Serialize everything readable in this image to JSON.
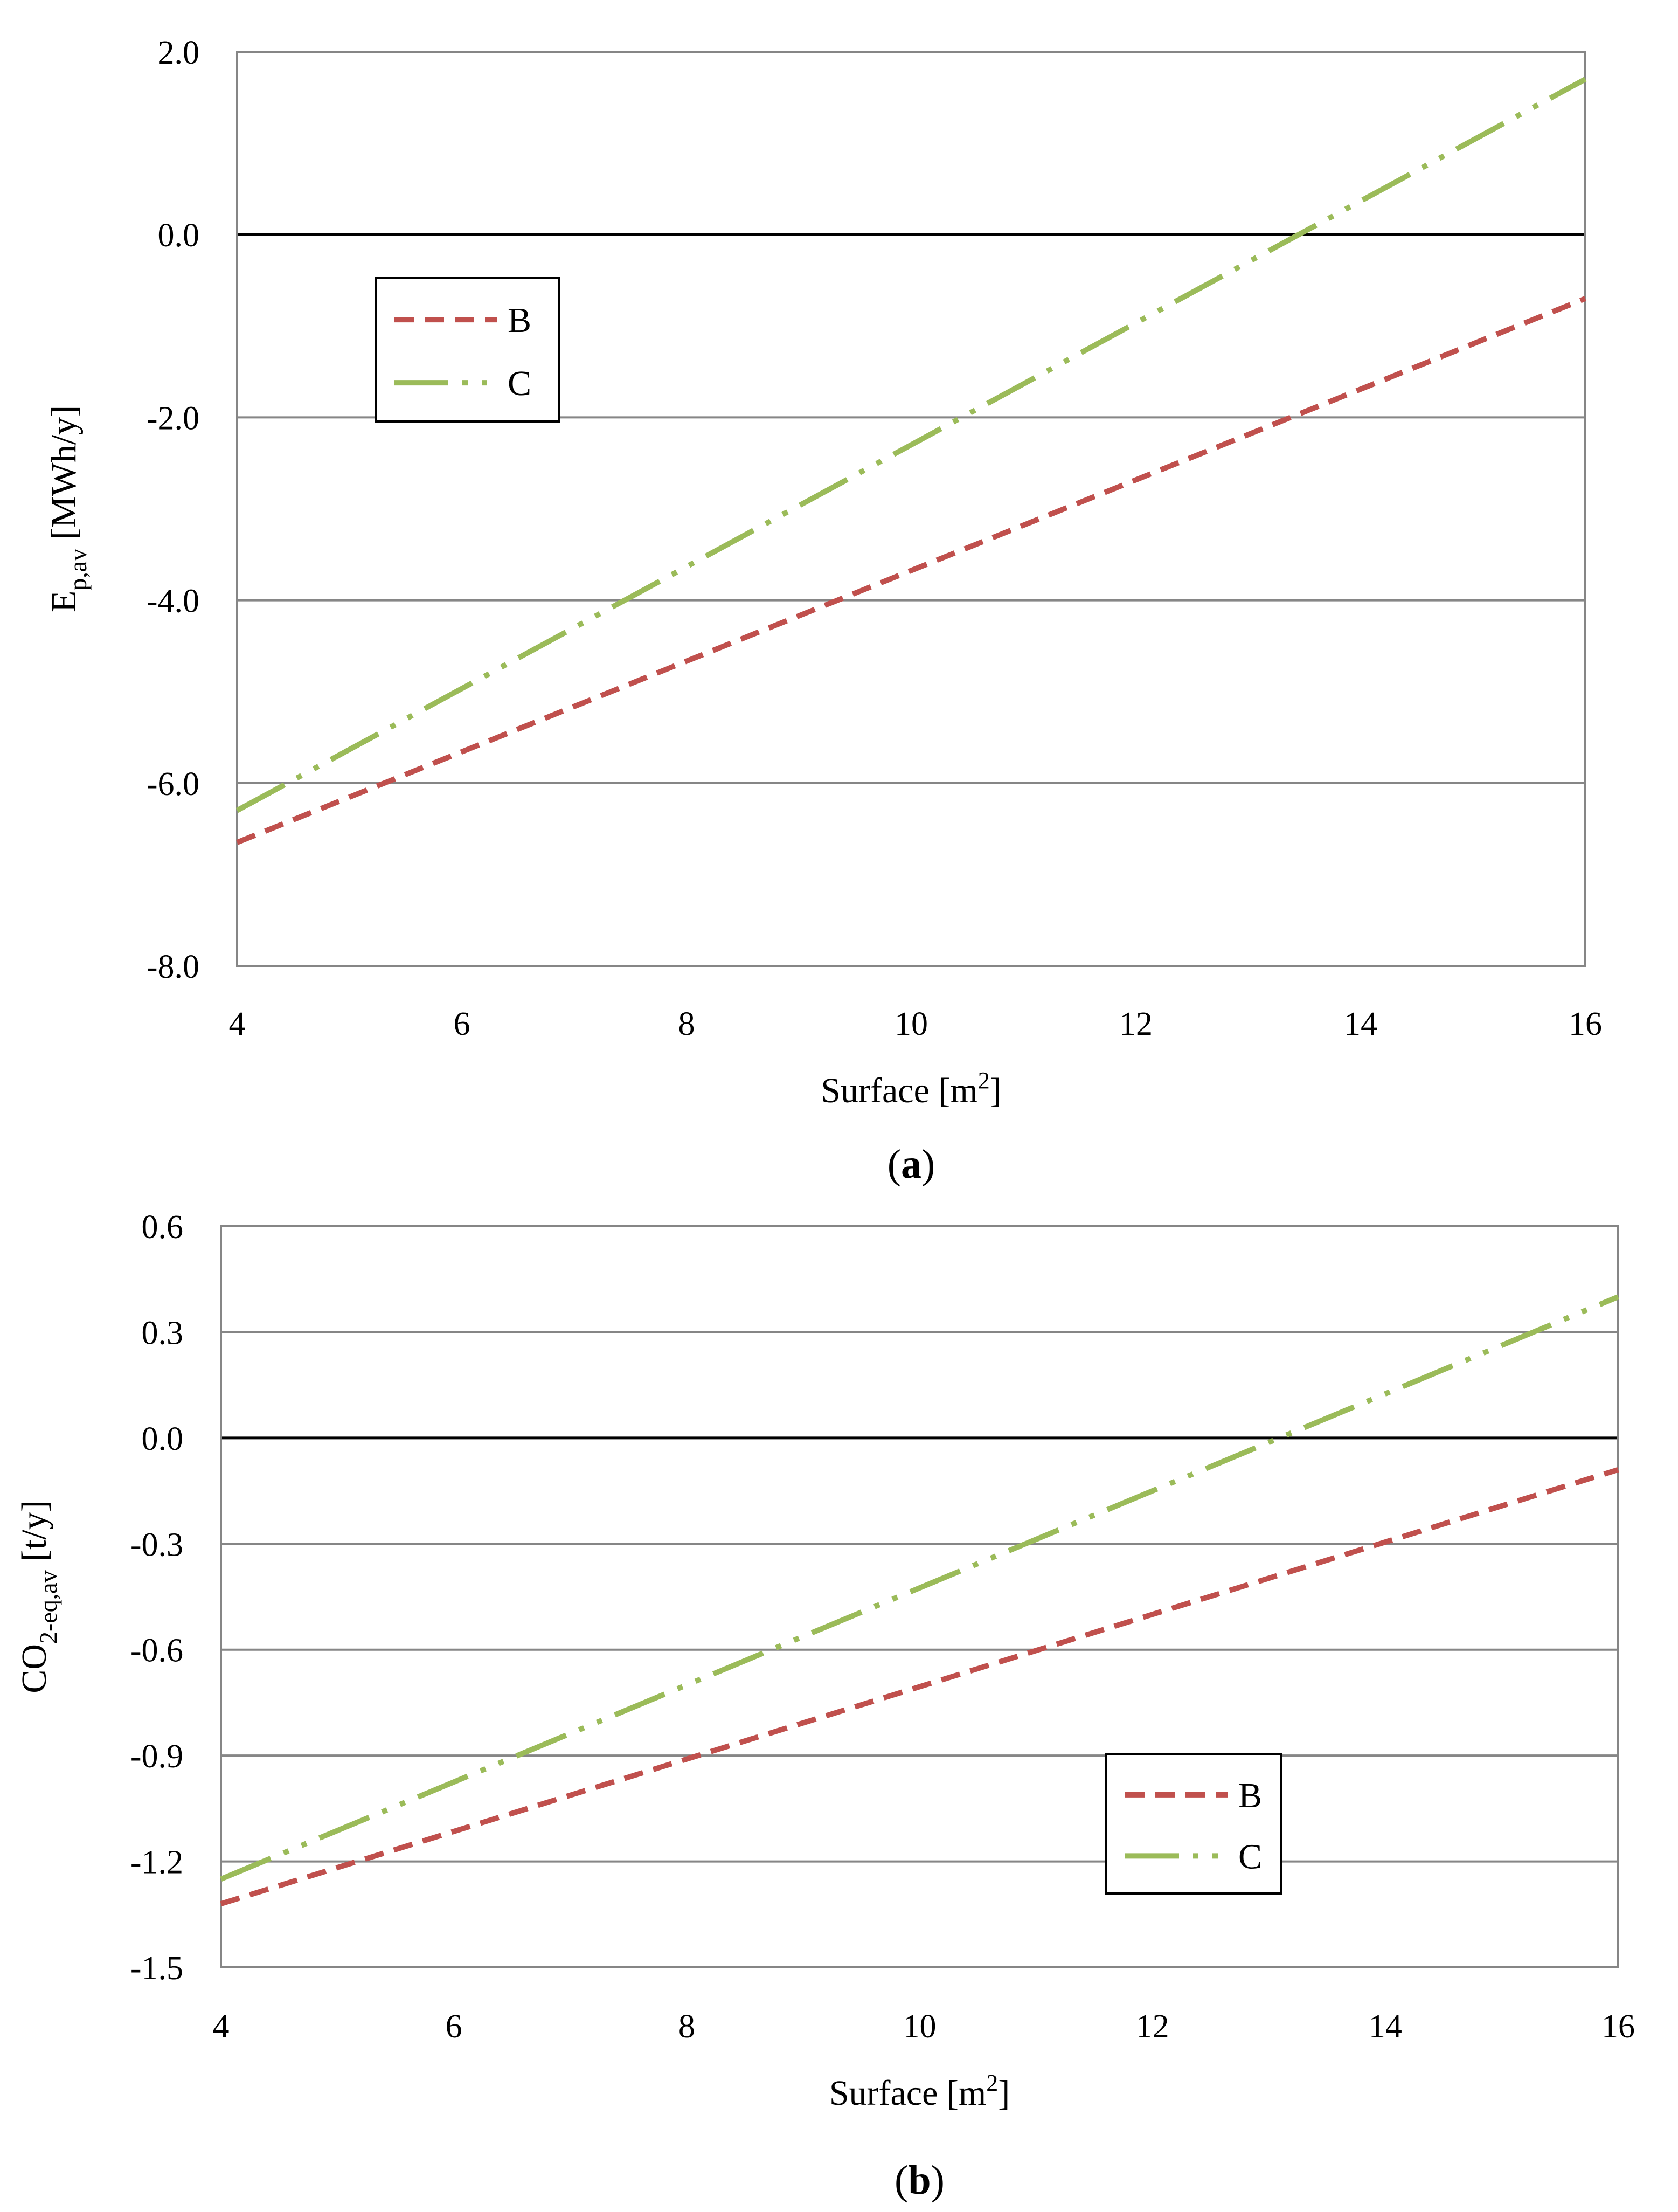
{
  "colors": {
    "B": "#c0504d",
    "C": "#9bbb59",
    "grid": "#868686",
    "zero": "#000000"
  },
  "chart_data": [
    {
      "type": "line",
      "caption": {
        "prefix": "(",
        "label": "a",
        "suffix": ")"
      },
      "ylabel": {
        "base": "E",
        "sub": "p,av",
        "unit": " [MWh/y]"
      },
      "xlabel": {
        "text": "Surface [m",
        "sup": "2",
        "end": "]"
      },
      "x_ticks": [
        "4",
        "6",
        "8",
        "10",
        "12",
        "14",
        "16"
      ],
      "y_ticks": [
        "2.0",
        "0.0",
        "-2.0",
        "-4.0",
        "-6.0",
        "-8.0"
      ],
      "xlim": [
        4,
        16
      ],
      "ylim": [
        -8.0,
        2.0
      ],
      "y_step": 2.0,
      "legend_position": "upper-left",
      "series": [
        {
          "name": "B",
          "style": "dashed",
          "x": [
            4,
            16
          ],
          "y": [
            -6.65,
            -0.7
          ]
        },
        {
          "name": "C",
          "style": "dash-dot-dot",
          "x": [
            4,
            16
          ],
          "y": [
            -6.3,
            1.7
          ]
        }
      ]
    },
    {
      "type": "line",
      "caption": {
        "prefix": "(",
        "label": "b",
        "suffix": ")"
      },
      "ylabel": {
        "base": "CO",
        "sub": "2-eq,av",
        "unit": " [t/y]"
      },
      "xlabel": {
        "text": "Surface [m",
        "sup": "2",
        "end": "]"
      },
      "x_ticks": [
        "4",
        "6",
        "8",
        "10",
        "12",
        "14",
        "16"
      ],
      "y_ticks": [
        "0.6",
        "0.3",
        "0.0",
        "-0.3",
        "-0.6",
        "-0.9",
        "-1.2",
        "-1.5"
      ],
      "xlim": [
        4,
        16
      ],
      "ylim": [
        -1.5,
        0.6
      ],
      "y_step": 0.3,
      "legend_position": "lower-right",
      "series": [
        {
          "name": "B",
          "style": "dashed",
          "x": [
            4,
            16
          ],
          "y": [
            -1.32,
            -0.09
          ]
        },
        {
          "name": "C",
          "style": "dash-dot-dot",
          "x": [
            4,
            16
          ],
          "y": [
            -1.25,
            0.4
          ]
        }
      ]
    }
  ]
}
